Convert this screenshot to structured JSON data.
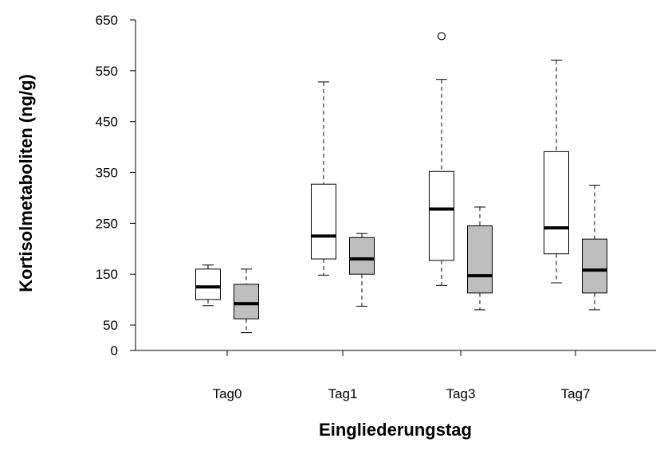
{
  "chart_data": {
    "type": "boxplot",
    "title": "",
    "xlabel": "Eingliederungstag",
    "ylabel": "Kortisolmetaboliten (ng/g)",
    "ylim": [
      0,
      650
    ],
    "yticks": [
      0,
      50,
      150,
      250,
      350,
      450,
      550,
      650
    ],
    "categories": [
      "Tag0",
      "Tag1",
      "Tag3",
      "Tag7"
    ],
    "grid": false,
    "legend": "none",
    "series": [
      {
        "fill": "#ffffff",
        "boxes": [
          {
            "category": "Tag0",
            "whisker_low": 88,
            "q1": 100,
            "median": 125,
            "q3": 160,
            "whisker_high": 168,
            "outliers": []
          },
          {
            "category": "Tag1",
            "whisker_low": 148,
            "q1": 180,
            "median": 225,
            "q3": 327,
            "whisker_high": 528,
            "outliers": []
          },
          {
            "category": "Tag3",
            "whisker_low": 128,
            "q1": 177,
            "median": 278,
            "q3": 352,
            "whisker_high": 533,
            "outliers": [
              618
            ]
          },
          {
            "category": "Tag7",
            "whisker_low": 133,
            "q1": 190,
            "median": 241,
            "q3": 391,
            "whisker_high": 571,
            "outliers": []
          }
        ]
      },
      {
        "fill": "#bebebe",
        "boxes": [
          {
            "category": "Tag0",
            "whisker_low": 35,
            "q1": 62,
            "median": 92,
            "q3": 130,
            "whisker_high": 160,
            "outliers": []
          },
          {
            "category": "Tag1",
            "whisker_low": 87,
            "q1": 150,
            "median": 180,
            "q3": 222,
            "whisker_high": 230,
            "outliers": []
          },
          {
            "category": "Tag3",
            "whisker_low": 80,
            "q1": 113,
            "median": 147,
            "q3": 245,
            "whisker_high": 282,
            "outliers": []
          },
          {
            "category": "Tag7",
            "whisker_low": 80,
            "q1": 113,
            "median": 158,
            "q3": 219,
            "whisker_high": 325,
            "outliers": []
          }
        ]
      }
    ]
  }
}
